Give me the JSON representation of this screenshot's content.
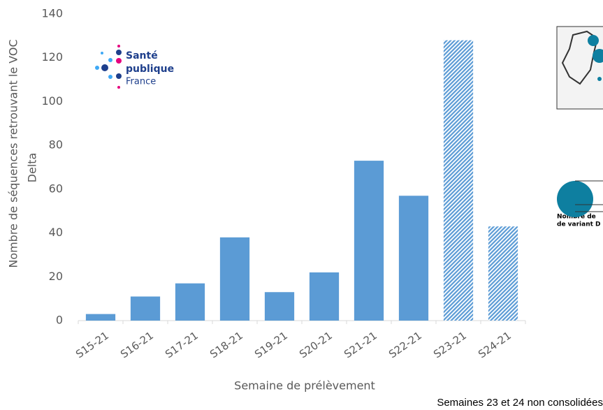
{
  "chart_data": {
    "type": "bar",
    "y_label": [
      "Nombre de séquences retrouvant le VOC",
      "Delta"
    ],
    "x_label": "Semaine de prélèvement",
    "categories": [
      "S15-21",
      "S16-21",
      "S17-21",
      "S18-21",
      "S19-21",
      "S20-21",
      "S21-21",
      "S22-21",
      "S23-21",
      "S24-21"
    ],
    "values": [
      3,
      11,
      17,
      38,
      13,
      22,
      73,
      57,
      128,
      43
    ],
    "bar_styles": [
      "solid",
      "solid",
      "solid",
      "solid",
      "solid",
      "solid",
      "solid",
      "solid",
      "hatched",
      "hatched"
    ],
    "color": "#5b9bd5",
    "ylim": [
      0,
      140
    ],
    "yticks": [
      0,
      20,
      40,
      60,
      80,
      100,
      120,
      140
    ],
    "grid": false,
    "logo": [
      "Santé",
      "publique",
      "France"
    ],
    "legend_text": [
      "Nombre de",
      "de variant D"
    ],
    "footnote": "Semaines 23 et 24 non consolidées"
  }
}
